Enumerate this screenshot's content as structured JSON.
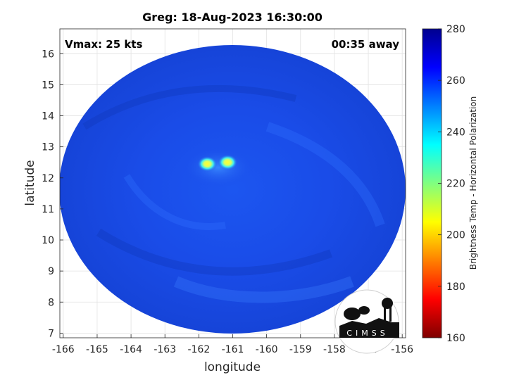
{
  "title": "Greg: 18-Aug-2023 16:30:00",
  "vmax_label": "Vmax: 25 kts",
  "time_away": "00:35 away",
  "xlabel": "longitude",
  "ylabel": "latitude",
  "colorbar": {
    "label": "Brightness Temp - Horizontal Polarization",
    "min": 160,
    "max": 280,
    "ticks": [
      {
        "value": 280,
        "label": "280"
      },
      {
        "value": 260,
        "label": "260"
      },
      {
        "value": 240,
        "label": "240"
      },
      {
        "value": 220,
        "label": "220"
      },
      {
        "value": 200,
        "label": "200"
      },
      {
        "value": 180,
        "label": "180"
      },
      {
        "value": 160,
        "label": "160"
      }
    ],
    "colormap": [
      "#7f0000",
      "#ff0000",
      "#ff8000",
      "#ffff00",
      "#80ff80",
      "#00ffff",
      "#0080ff",
      "#0000ff",
      "#00008f"
    ]
  },
  "axes": {
    "xlim": [
      -166.1,
      -155.9
    ],
    "ylim": [
      6.85,
      16.8
    ],
    "xticks": [
      {
        "value": -166,
        "label": "-166"
      },
      {
        "value": -165,
        "label": "-165"
      },
      {
        "value": -164,
        "label": "-164"
      },
      {
        "value": -163,
        "label": "-163"
      },
      {
        "value": -162,
        "label": "-162"
      },
      {
        "value": -161,
        "label": "-161"
      },
      {
        "value": -160,
        "label": "-160"
      },
      {
        "value": -159,
        "label": "-159"
      },
      {
        "value": -158,
        "label": "-158"
      },
      {
        "value": -157,
        "label": "-157"
      },
      {
        "value": -156,
        "label": "-156"
      }
    ],
    "yticks": [
      {
        "value": 7,
        "label": "7"
      },
      {
        "value": 8,
        "label": "8"
      },
      {
        "value": 9,
        "label": "9"
      },
      {
        "value": 10,
        "label": "10"
      },
      {
        "value": 11,
        "label": "11"
      },
      {
        "value": 12,
        "label": "12"
      },
      {
        "value": 13,
        "label": "13"
      },
      {
        "value": 14,
        "label": "14"
      },
      {
        "value": 15,
        "label": "15"
      },
      {
        "value": 16,
        "label": "16"
      }
    ],
    "grid": true
  },
  "scan_swath": {
    "center_lon": -161.05,
    "center_lat": 11.85,
    "background_temp_K": 265
  },
  "convective_cells": [
    {
      "lon": -161.75,
      "lat": 12.45,
      "temp_K": 205
    },
    {
      "lon": -161.15,
      "lat": 12.5,
      "temp_K": 208
    }
  ],
  "logo": {
    "text": "CIMSS"
  }
}
